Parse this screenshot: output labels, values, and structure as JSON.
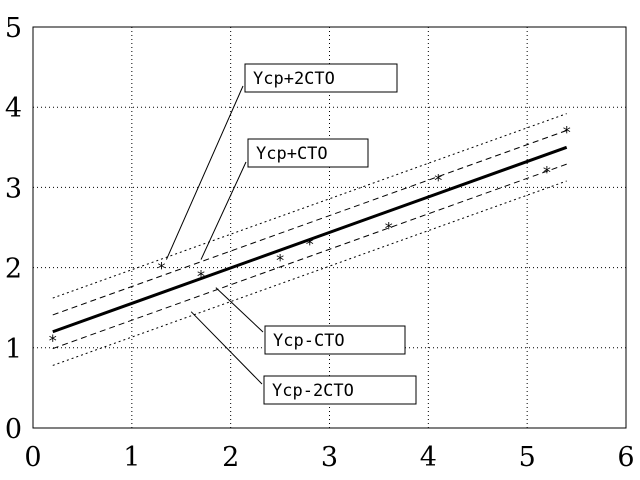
{
  "chart_data": {
    "type": "scatter",
    "title": "",
    "xlabel": "",
    "ylabel": "",
    "xlim": [
      0,
      6
    ],
    "ylim": [
      0,
      5
    ],
    "x_ticks": [
      0,
      1,
      2,
      3,
      4,
      5,
      6
    ],
    "y_ticks": [
      0,
      1,
      2,
      3,
      4,
      5
    ],
    "grid": true,
    "points": [
      {
        "x": 0.2,
        "y": 1.1
      },
      {
        "x": 1.3,
        "y": 2.0
      },
      {
        "x": 1.7,
        "y": 1.9
      },
      {
        "x": 2.5,
        "y": 2.1
      },
      {
        "x": 2.8,
        "y": 2.3
      },
      {
        "x": 3.6,
        "y": 2.5
      },
      {
        "x": 4.1,
        "y": 3.1
      },
      {
        "x": 5.2,
        "y": 3.2
      },
      {
        "x": 5.4,
        "y": 3.7
      }
    ],
    "fit_line": {
      "x": [
        0.2,
        5.4
      ],
      "y": [
        1.2,
        3.5
      ]
    },
    "bands": [
      {
        "name": "Ycp+2CTO",
        "offset": 0.42,
        "style": "dotted"
      },
      {
        "name": "Ycp+CTO",
        "offset": 0.21,
        "style": "dashed"
      },
      {
        "name": "Ycp-CTO",
        "offset": -0.21,
        "style": "dashed"
      },
      {
        "name": "Ycp-2CTO",
        "offset": -0.42,
        "style": "dotted"
      }
    ],
    "annotations": [
      {
        "text": "Ycp+2CTO",
        "target": [
          1.35,
          2.1
        ]
      },
      {
        "text": "Ycp+CTO",
        "target": [
          1.7,
          2.1
        ]
      },
      {
        "text": "Ycp-CTO",
        "target": [
          1.85,
          1.75
        ]
      },
      {
        "text": "Ycp-2CTO",
        "target": [
          1.6,
          1.45
        ]
      }
    ]
  }
}
